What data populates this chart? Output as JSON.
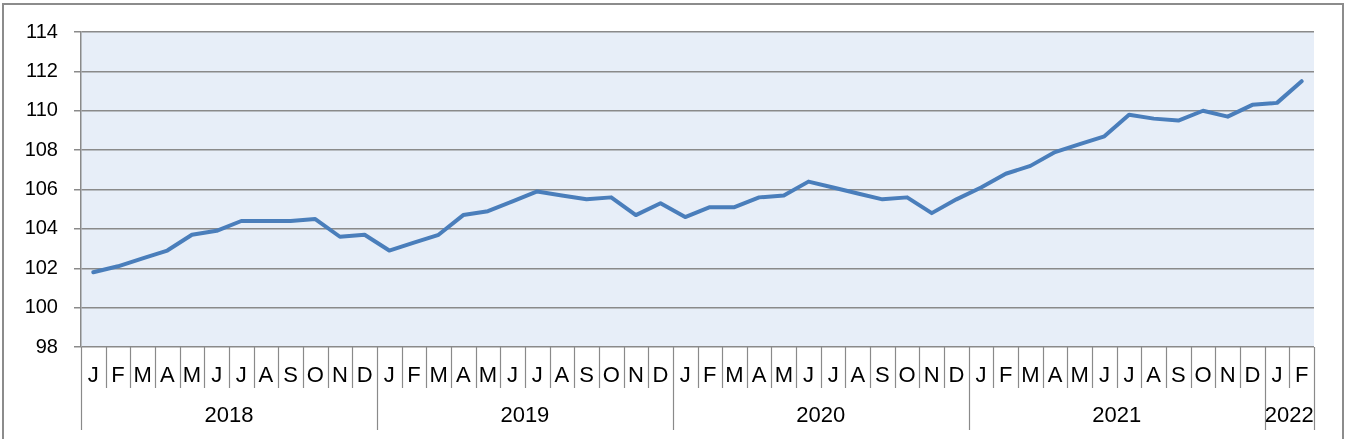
{
  "chart_data": {
    "type": "line",
    "categories": [
      "J",
      "F",
      "M",
      "A",
      "M",
      "J",
      "J",
      "A",
      "S",
      "O",
      "N",
      "D",
      "J",
      "F",
      "M",
      "A",
      "M",
      "J",
      "J",
      "A",
      "S",
      "O",
      "N",
      "D",
      "J",
      "F",
      "M",
      "A",
      "M",
      "J",
      "J",
      "A",
      "S",
      "O",
      "N",
      "D",
      "J",
      "F",
      "M",
      "A",
      "M",
      "J",
      "J",
      "A",
      "S",
      "O",
      "N",
      "D",
      "J",
      "F"
    ],
    "values": [
      101.8,
      102.1,
      102.5,
      102.9,
      103.7,
      103.9,
      104.4,
      104.4,
      104.4,
      104.5,
      103.6,
      103.7,
      102.9,
      103.3,
      103.7,
      104.7,
      104.9,
      105.4,
      105.9,
      105.7,
      105.5,
      105.6,
      104.7,
      105.3,
      104.6,
      105.1,
      105.1,
      105.6,
      105.7,
      106.4,
      106.1,
      105.8,
      105.5,
      105.6,
      104.8,
      105.5,
      106.1,
      106.8,
      107.2,
      107.9,
      108.3,
      108.7,
      109.8,
      109.6,
      109.5,
      110.0,
      109.7,
      110.3,
      110.4,
      111.5
    ],
    "color": "#4a7ebb",
    "ylim": [
      98,
      114
    ],
    "yticks": [
      98,
      100,
      102,
      104,
      106,
      108,
      110,
      112,
      114
    ],
    "grid": "y",
    "marker": "none",
    "line_style": "solid",
    "annotations": [
      "2018",
      "2019",
      "2020",
      "2021",
      "2022"
    ]
  }
}
